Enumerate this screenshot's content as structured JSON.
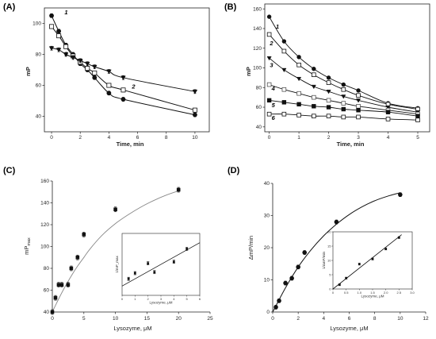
{
  "chart_data": [
    {
      "panel": "(A)",
      "type": "line",
      "xlabel": "Time, min",
      "ylabel": "mP",
      "xlim": [
        -0.5,
        11
      ],
      "ylim": [
        30,
        110
      ],
      "xticks": [
        0,
        2,
        4,
        6,
        8,
        10
      ],
      "yticks": [
        40,
        60,
        80,
        100
      ],
      "series": [
        {
          "name": "1",
          "marker": "circle-filled",
          "x": [
            0,
            0.5,
            1,
            1.5,
            2,
            2.5,
            3,
            4,
            5,
            10
          ],
          "y": [
            105,
            95,
            86,
            80,
            74,
            70,
            65,
            55,
            51,
            41
          ]
        },
        {
          "name": "2",
          "marker": "square-open",
          "x": [
            0,
            0.5,
            1,
            1.5,
            2,
            2.5,
            3,
            4,
            5,
            10
          ],
          "y": [
            98,
            92,
            85,
            79,
            75,
            71,
            68,
            60,
            57,
            44
          ]
        },
        {
          "name": "3",
          "marker": "triangle-down-filled",
          "x": [
            0,
            0.5,
            1,
            1.5,
            2,
            2.5,
            3,
            4,
            5,
            10
          ],
          "y": [
            84,
            83,
            80,
            78,
            76,
            74,
            72,
            69,
            65,
            56
          ]
        }
      ],
      "labels": [
        {
          "text": "1",
          "x": 0.9,
          "y": 106
        },
        {
          "text": "2",
          "x": 5.6,
          "y": 58
        },
        {
          "text": "3",
          "x": 0.9,
          "y": 79
        }
      ]
    },
    {
      "panel": "(B)",
      "type": "line",
      "xlabel": "Time, min",
      "ylabel": "mP",
      "xlim": [
        -0.15,
        5.4
      ],
      "ylim": [
        35,
        165
      ],
      "xticks": [
        0,
        1,
        2,
        3,
        4,
        5
      ],
      "yticks": [
        40,
        60,
        80,
        100,
        120,
        140,
        160
      ],
      "series": [
        {
          "name": "1",
          "marker": "circle-filled",
          "x": [
            0,
            0.5,
            1,
            1.5,
            2,
            2.5,
            3,
            4,
            5
          ],
          "y": [
            152,
            127,
            111,
            99,
            90,
            83,
            77,
            64,
            59
          ]
        },
        {
          "name": "2",
          "marker": "square-open",
          "x": [
            0,
            0.5,
            1,
            1.5,
            2,
            2.5,
            3,
            4,
            5
          ],
          "y": [
            134,
            117,
            103,
            93,
            85,
            78,
            72,
            63,
            58
          ]
        },
        {
          "name": "3",
          "marker": "triangle-down-filled",
          "x": [
            0,
            0.5,
            1,
            1.5,
            2,
            2.5,
            3,
            4,
            5
          ],
          "y": [
            110,
            98,
            89,
            81,
            76,
            71,
            67,
            60,
            55
          ]
        },
        {
          "name": "4",
          "marker": "square-open-light",
          "x": [
            0,
            0.5,
            1,
            1.5,
            2,
            2.5,
            3,
            4,
            5
          ],
          "y": [
            83,
            78,
            74,
            70,
            67,
            64,
            61,
            57,
            53
          ]
        },
        {
          "name": "5",
          "marker": "square-filled",
          "x": [
            0,
            0.5,
            1,
            1.5,
            2,
            2.5,
            3,
            4,
            5
          ],
          "y": [
            67,
            65,
            63,
            61,
            60,
            58,
            57,
            55,
            51
          ]
        },
        {
          "name": "6",
          "marker": "square-open",
          "x": [
            0,
            0.5,
            1,
            1.5,
            2,
            2.5,
            3,
            4,
            5
          ],
          "y": [
            53,
            53,
            52,
            51,
            51,
            50,
            50,
            48,
            47
          ]
        }
      ],
      "labels": [
        {
          "text": "1",
          "x": 0.22,
          "y": 140
        },
        {
          "text": "2",
          "x": 0.02,
          "y": 123
        },
        {
          "text": "3",
          "x": 0.02,
          "y": 101
        },
        {
          "text": "4",
          "x": 0.08,
          "y": 77
        },
        {
          "text": "5",
          "x": 0.08,
          "y": 60
        },
        {
          "text": "6",
          "x": 0.08,
          "y": 47
        }
      ]
    },
    {
      "panel": "(C)",
      "type": "scatter",
      "xlabel": "Lysozyme, μM",
      "ylabel_main": "mP",
      "ylabel_sub": "max",
      "xlim": [
        0,
        25
      ],
      "ylim": [
        40,
        160
      ],
      "xticks": [
        0,
        5,
        10,
        15,
        20,
        25
      ],
      "yticks": [
        40,
        60,
        80,
        100,
        120,
        140,
        160
      ],
      "series": [
        {
          "name": "data",
          "x": [
            0,
            0.5,
            1,
            1.5,
            2.5,
            3,
            4,
            5,
            10,
            20
          ],
          "y": [
            40,
            53,
            65,
            65,
            65,
            80,
            90,
            111,
            134,
            152
          ]
        }
      ],
      "fit": {
        "x": [
          0,
          1,
          2,
          3,
          4,
          5,
          6,
          8,
          10,
          12,
          14,
          16,
          18,
          20
        ],
        "y": [
          40,
          52,
          63,
          73,
          82,
          90,
          98,
          111,
          121,
          129,
          136,
          142,
          147,
          151
        ]
      },
      "inset": {
        "ylabel": "1/mP_max",
        "xlabel": "Lysozyme, μM",
        "xlim": [
          0,
          6
        ],
        "ylim": [
          0,
          12
        ],
        "xticks": [
          0,
          1,
          2,
          3,
          4,
          5,
          6
        ],
        "x": [
          0.5,
          1,
          2,
          2.5,
          4,
          5
        ],
        "y": [
          3.2,
          4.3,
          6.2,
          4.5,
          6.5,
          9
        ],
        "fit": {
          "x": [
            0,
            6
          ],
          "y": [
            1.8,
            10.2
          ]
        }
      }
    },
    {
      "panel": "(D)",
      "type": "scatter",
      "xlabel": "Lysozyme, μM",
      "ylabel": "ΔmP/min",
      "xlim": [
        0,
        12
      ],
      "ylim": [
        0,
        40
      ],
      "xticks": [
        0,
        2,
        4,
        6,
        8,
        10,
        12
      ],
      "yticks": [
        0,
        10,
        20,
        30,
        40
      ],
      "series": [
        {
          "name": "data",
          "x": [
            0.25,
            0.5,
            1,
            1.5,
            2,
            2.5,
            5,
            10
          ],
          "y": [
            1.5,
            3.5,
            9,
            10.5,
            14,
            18.5,
            28,
            36.5
          ]
        }
      ],
      "fit": {
        "x": [
          0,
          1,
          2,
          3,
          4,
          5,
          6,
          7,
          8,
          9,
          10
        ],
        "y": [
          0,
          7.5,
          14,
          19.3,
          23.7,
          27.3,
          30.3,
          32.7,
          34.6,
          36.0,
          37.1
        ]
      },
      "inset": {
        "ylabel": "1/ΔmP/min",
        "xlabel": "Lysozyme, μM",
        "xlim": [
          0,
          3
        ],
        "ylim": [
          0,
          20
        ],
        "xticks": [
          "0",
          "0.5",
          "1.0",
          "1.5",
          "2.0",
          "2.5",
          "3.0"
        ],
        "yticks": [
          0,
          5,
          10,
          15,
          20
        ],
        "x": [
          0.25,
          0.5,
          1,
          1.5,
          2,
          2.5
        ],
        "y": [
          1.5,
          3.8,
          8.7,
          10.5,
          14,
          18
        ],
        "fit": {
          "x": [
            0,
            2.6
          ],
          "y": [
            0,
            19
          ]
        }
      }
    }
  ]
}
